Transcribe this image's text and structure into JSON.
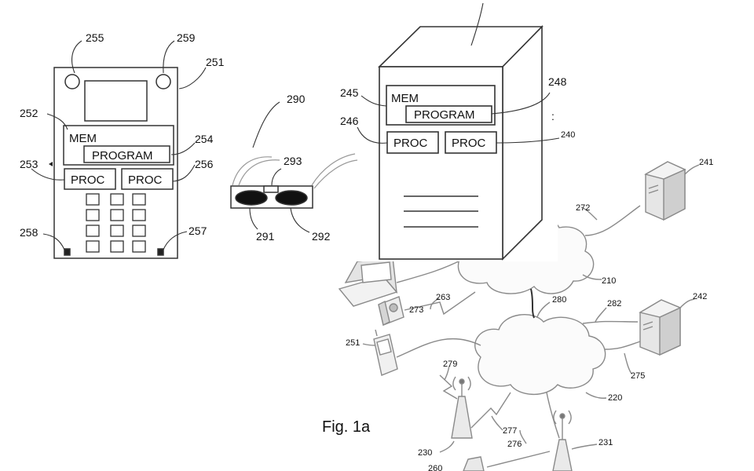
{
  "figure": {
    "caption": "Fig. 1a"
  },
  "box_text": {
    "mem": "MEM",
    "program": "PROGRAM",
    "proc": "PROC"
  },
  "ref_labels": {
    "r255": "255",
    "r259": "259",
    "r251a": "251",
    "r252": "252",
    "r254": "254",
    "r253": "253",
    "r256": "256",
    "r258": "258",
    "r257": "257",
    "r290": "290",
    "r293": "293",
    "r291": "291",
    "r292": "292",
    "r245": "245",
    "r246": "246",
    "r248": "248",
    "r240": "240",
    "r241": "241",
    "r272": "272",
    "r210": "210",
    "r280": "280",
    "r282": "282",
    "r242": "242",
    "r263": "263",
    "r273": "273",
    "r251b": "251",
    "r275": "275",
    "r279": "279",
    "r220": "220",
    "r277": "277",
    "r276": "276",
    "r230": "230",
    "r231": "231",
    "r260": "260"
  }
}
